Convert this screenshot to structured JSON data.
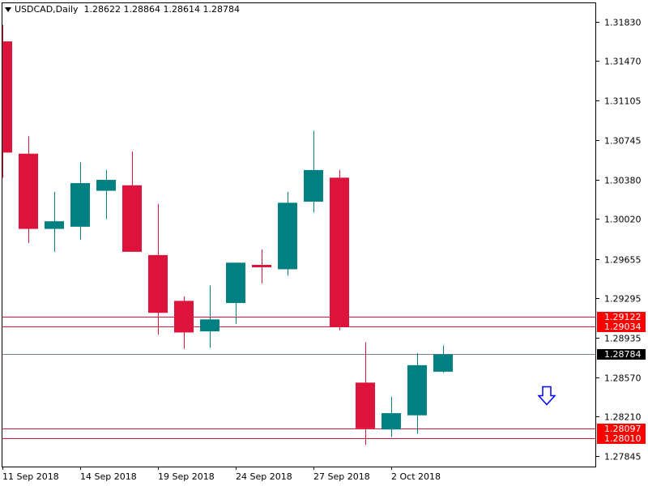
{
  "header": {
    "symbol": "USDCAD,Daily",
    "open": "1.28622",
    "high": "1.28864",
    "low": "1.28614",
    "close": "1.28784"
  },
  "colors": {
    "bull": "#008080",
    "bear": "#dc143c",
    "level_line": "#dc143c",
    "level_label_bg": "#ff0000",
    "current_line": "#708090",
    "current_label_bg": "#000000",
    "arrow": "#0000ff"
  },
  "chart_data": {
    "type": "candlestick",
    "symbol": "USDCAD",
    "timeframe": "Daily",
    "ylim": [
      1.2775,
      1.32
    ],
    "y_ticks": [
      "1.31830",
      "1.31470",
      "1.31105",
      "1.30745",
      "1.30380",
      "1.30020",
      "1.29655",
      "1.29295",
      "1.28935",
      "1.28570",
      "1.28210",
      "1.27845"
    ],
    "x_tick_labels": [
      {
        "index": 0,
        "label": "11 Sep 2018"
      },
      {
        "index": 3,
        "label": "14 Sep 2018"
      },
      {
        "index": 6,
        "label": "19 Sep 2018"
      },
      {
        "index": 9,
        "label": "24 Sep 2018"
      },
      {
        "index": 12,
        "label": "27 Sep 2018"
      },
      {
        "index": 15,
        "label": "2 Oct 2018"
      }
    ],
    "candles": [
      {
        "open": 1.3165,
        "high": 1.318,
        "low": 1.304,
        "close": 1.3063
      },
      {
        "open": 1.3062,
        "high": 1.3078,
        "low": 1.298,
        "close": 1.2993
      },
      {
        "open": 1.2993,
        "high": 1.3027,
        "low": 1.2972,
        "close": 1.3
      },
      {
        "open": 1.2995,
        "high": 1.3054,
        "low": 1.2983,
        "close": 1.3035
      },
      {
        "open": 1.3028,
        "high": 1.3047,
        "low": 1.3002,
        "close": 1.3038
      },
      {
        "open": 1.3033,
        "high": 1.3064,
        "low": 1.2972,
        "close": 1.2972
      },
      {
        "open": 1.2969,
        "high": 1.3016,
        "low": 1.2896,
        "close": 1.2916
      },
      {
        "open": 1.2927,
        "high": 1.2931,
        "low": 1.2883,
        "close": 1.2898
      },
      {
        "open": 1.2899,
        "high": 1.2941,
        "low": 1.2884,
        "close": 1.291
      },
      {
        "open": 1.2925,
        "high": 1.2962,
        "low": 1.2906,
        "close": 1.2962
      },
      {
        "open": 1.296,
        "high": 1.2974,
        "low": 1.2943,
        "close": 1.2958
      },
      {
        "open": 1.2956,
        "high": 1.3027,
        "low": 1.295,
        "close": 1.3017
      },
      {
        "open": 1.3018,
        "high": 1.3083,
        "low": 1.3008,
        "close": 1.3047
      },
      {
        "open": 1.304,
        "high": 1.3047,
        "low": 1.29,
        "close": 1.2903
      },
      {
        "open": 1.2852,
        "high": 1.2889,
        "low": 1.2795,
        "close": 1.281
      },
      {
        "open": 1.2809,
        "high": 1.2839,
        "low": 1.2802,
        "close": 1.2824
      },
      {
        "open": 1.2822,
        "high": 1.2879,
        "low": 1.2805,
        "close": 1.2868
      },
      {
        "open": 1.2862,
        "high": 1.2886,
        "low": 1.2861,
        "close": 1.2878
      }
    ],
    "levels": [
      {
        "value": 1.29122,
        "label": "1.29122"
      },
      {
        "value": 1.29034,
        "label": "1.29034"
      },
      {
        "value": 1.28097,
        "label": "1.28097"
      },
      {
        "value": 1.2801,
        "label": "1.28010"
      }
    ],
    "current_price": {
      "value": 1.28784,
      "label": "1.28784"
    },
    "annotation": {
      "type": "arrow-down",
      "value": 1.284,
      "index": 21
    }
  }
}
